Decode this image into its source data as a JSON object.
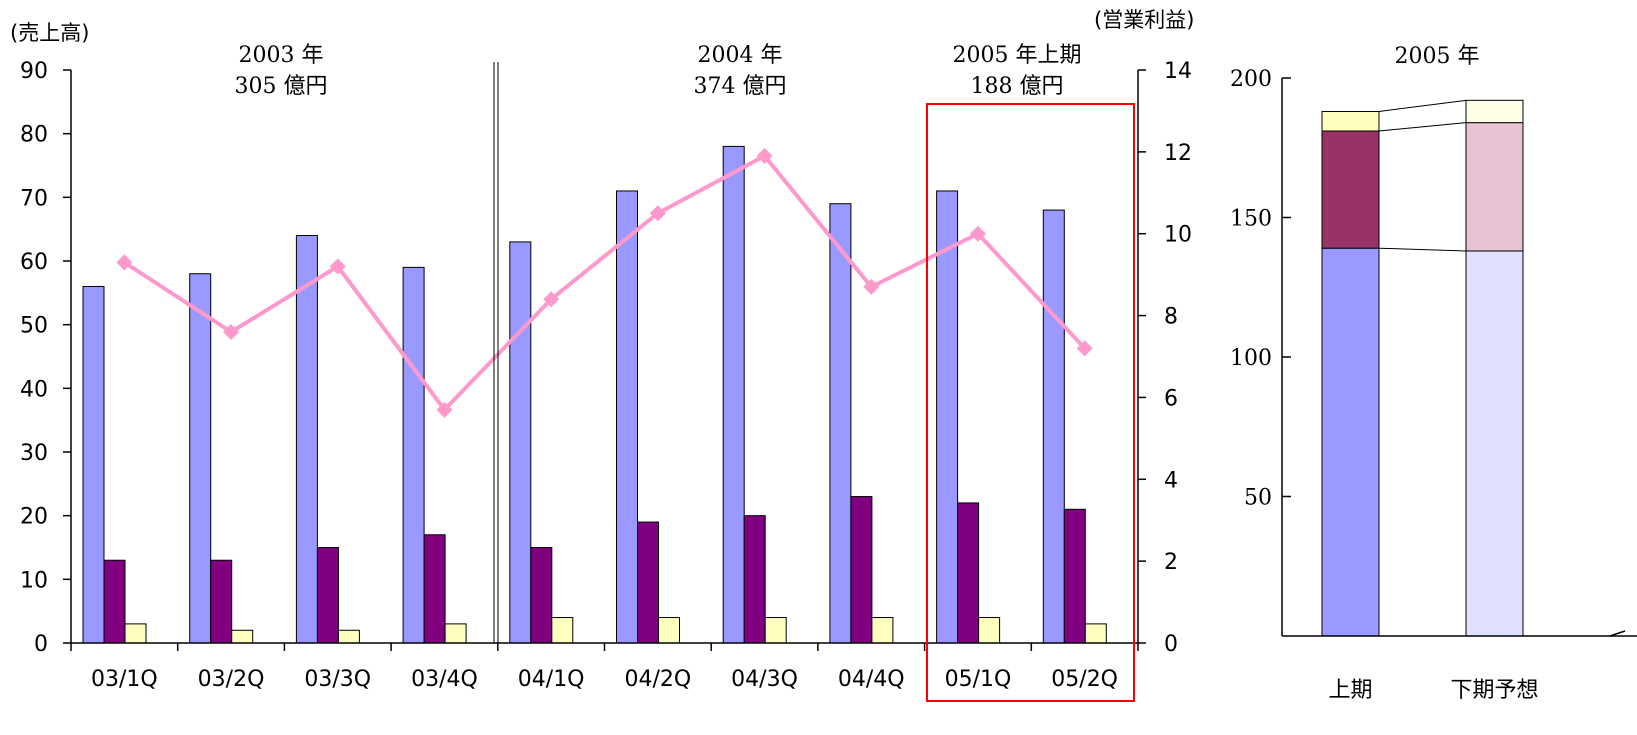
{
  "chart_data": [
    {
      "type": "bar",
      "y_left_label": "(売上高)",
      "y_right_label": "(営業利益)",
      "ylim_left": [
        0,
        90
      ],
      "ylim_right": [
        0,
        14
      ],
      "y_left_ticks": [
        "0",
        "10",
        "20",
        "30",
        "40",
        "50",
        "60",
        "70",
        "80",
        "90"
      ],
      "y_right_ticks": [
        "0",
        "2",
        "4",
        "6",
        "8",
        "10",
        "12",
        "14"
      ],
      "categories": [
        "03/1Q",
        "03/2Q",
        "03/3Q",
        "03/4Q",
        "04/1Q",
        "04/2Q",
        "04/3Q",
        "04/4Q",
        "05/1Q",
        "05/2Q"
      ],
      "series": [
        {
          "values": [
            56,
            58,
            64,
            59,
            63,
            71,
            78,
            69,
            71,
            68
          ],
          "color": "#9999ff",
          "axis": "left"
        },
        {
          "values": [
            13,
            13,
            15,
            17,
            15,
            19,
            20,
            23,
            22,
            21
          ],
          "color": "#800080",
          "axis": "left"
        },
        {
          "values": [
            3,
            2,
            2,
            3,
            4,
            4,
            4,
            4,
            4,
            3
          ],
          "color": "#ffffc0",
          "axis": "left"
        },
        {
          "type": "line",
          "values": [
            9.3,
            7.6,
            9.2,
            5.7,
            8.4,
            10.5,
            11.9,
            8.7,
            10.0,
            7.2
          ],
          "color": "#ff99cc",
          "axis": "right"
        }
      ],
      "period_labels": [
        {
          "line1": "2003 年",
          "line2": "305 億円"
        },
        {
          "line1": "2004 年",
          "line2": "374 億円"
        },
        {
          "line1": "2005 年上期",
          "line2": "188 億円"
        }
      ],
      "highlight_categories": [
        "05/1Q",
        "05/2Q"
      ],
      "highlight_color": "#ff0000"
    },
    {
      "type": "bar",
      "stacked": true,
      "title": "2005 年",
      "ylim": [
        0,
        200
      ],
      "y_ticks": [
        "50",
        "100",
        "150",
        "200"
      ],
      "categories": [
        "上期",
        "下期予想"
      ],
      "series": [
        {
          "values": [
            139,
            138
          ],
          "colors": [
            "#9999ff",
            "#e0e0ff"
          ]
        },
        {
          "values": [
            42,
            46
          ],
          "colors": [
            "#993366",
            "#e6c4d4"
          ]
        },
        {
          "values": [
            7,
            8
          ],
          "colors": [
            "#ffffc0",
            "#ffffe8"
          ]
        }
      ]
    }
  ]
}
